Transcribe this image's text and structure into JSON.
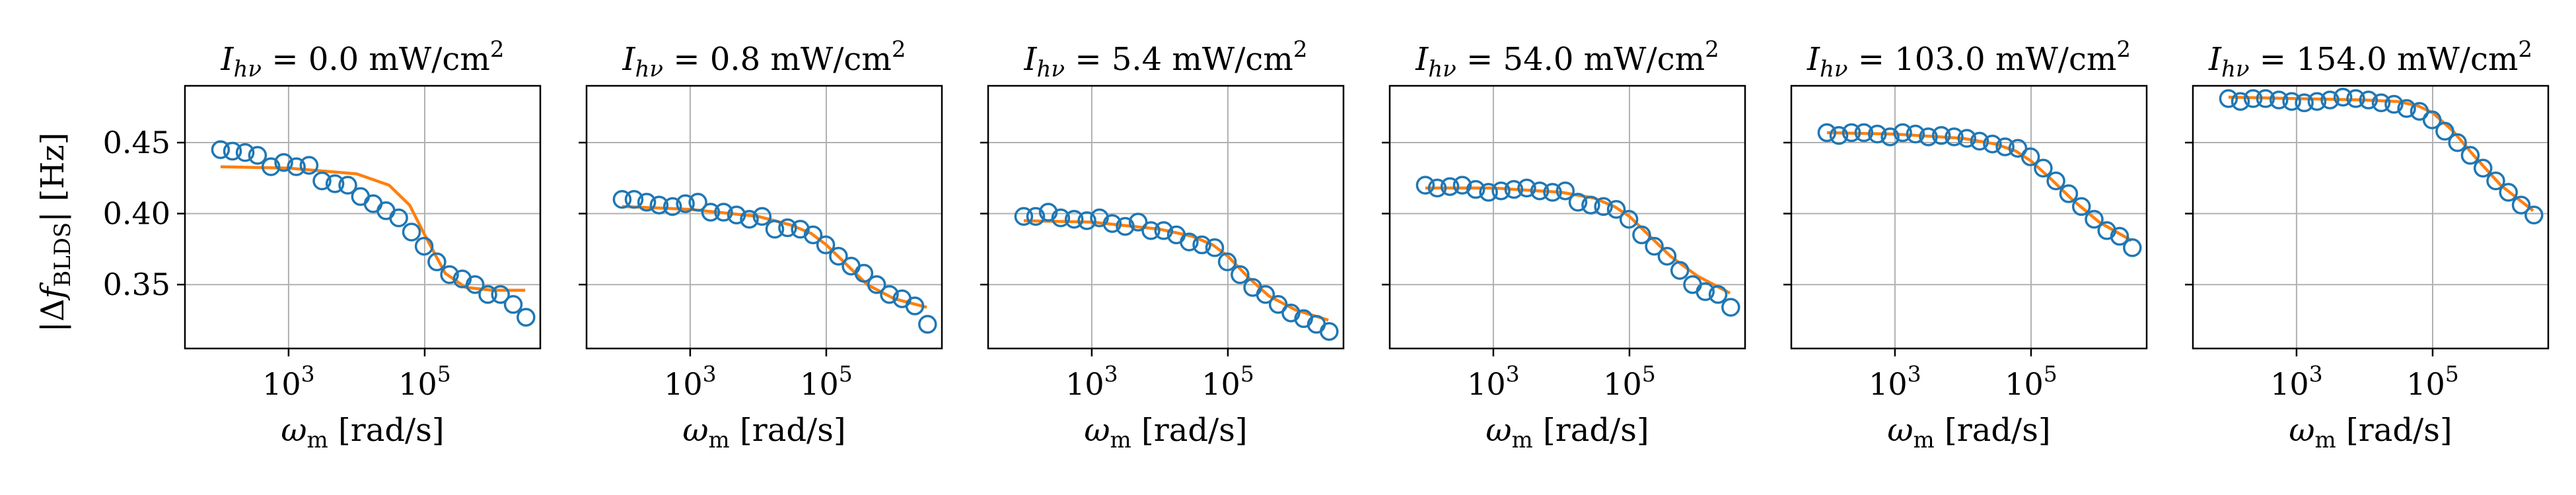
{
  "figure": {
    "ylabel": "|Δf_BLDS| [Hz]",
    "xlabel": "ω_m [rad/s]",
    "colors": {
      "markers": "#1f77b4",
      "fit": "#ff7f0e",
      "grid": "#b0b0b0"
    }
  },
  "chart_data": [
    {
      "type": "scatter",
      "title": "I_hν = 0.0 mW/cm²",
      "xscale": "log",
      "xlim": [
        30,
        5000000
      ],
      "ylim": [
        0.305,
        0.49
      ],
      "xticks": [
        1000,
        100000
      ],
      "xticklabels": [
        "10^3",
        "10^5"
      ],
      "yticks": [
        0.35,
        0.4,
        0.45
      ],
      "yticklabels": [
        "0.35",
        "0.40",
        "0.45"
      ],
      "grid": true,
      "series": [
        {
          "kind": "markers",
          "x": [
            100,
            150,
            230,
            350,
            550,
            850,
            1300,
            2000,
            3100,
            4800,
            7400,
            11400,
            17500,
            27000,
            41500,
            64000,
            98000,
            151000,
            232000,
            357000,
            550000,
            846000,
            1300000,
            2000000,
            3080000
          ],
          "y": [
            0.445,
            0.444,
            0.443,
            0.441,
            0.433,
            0.436,
            0.433,
            0.434,
            0.423,
            0.421,
            0.42,
            0.412,
            0.407,
            0.402,
            0.397,
            0.387,
            0.377,
            0.366,
            0.357,
            0.354,
            0.35,
            0.343,
            0.343,
            0.336,
            0.327
          ]
        },
        {
          "kind": "fit",
          "x": [
            100,
            1000,
            10000,
            30000,
            60000,
            100000,
            200000,
            400000,
            1000000,
            3000000
          ],
          "y": [
            0.433,
            0.432,
            0.428,
            0.42,
            0.406,
            0.385,
            0.358,
            0.348,
            0.346,
            0.346
          ]
        }
      ]
    },
    {
      "type": "scatter",
      "title": "I_hν = 0.8 mW/cm²",
      "xscale": "log",
      "xlim": [
        30,
        5000000
      ],
      "ylim": [
        0.305,
        0.49
      ],
      "xticks": [
        1000,
        100000
      ],
      "xticklabels": [
        "10^3",
        "10^5"
      ],
      "yticks": [
        0.35,
        0.4,
        0.45
      ],
      "yticklabels": [
        "",
        "",
        ""
      ],
      "grid": true,
      "series": [
        {
          "kind": "markers",
          "x": [
            100,
            150,
            230,
            350,
            550,
            850,
            1300,
            2000,
            3100,
            4800,
            7400,
            11400,
            17500,
            27000,
            41500,
            64000,
            98000,
            151000,
            232000,
            357000,
            550000,
            846000,
            1300000,
            2000000,
            3080000
          ],
          "y": [
            0.41,
            0.41,
            0.408,
            0.406,
            0.405,
            0.407,
            0.408,
            0.401,
            0.401,
            0.399,
            0.396,
            0.398,
            0.389,
            0.39,
            0.389,
            0.385,
            0.378,
            0.37,
            0.363,
            0.358,
            0.35,
            0.343,
            0.34,
            0.335,
            0.322
          ]
        },
        {
          "kind": "fit",
          "x": [
            100,
            1000,
            10000,
            30000,
            60000,
            100000,
            200000,
            400000,
            1000000,
            3000000
          ],
          "y": [
            0.405,
            0.403,
            0.398,
            0.392,
            0.386,
            0.378,
            0.364,
            0.35,
            0.34,
            0.334
          ]
        }
      ]
    },
    {
      "type": "scatter",
      "title": "I_hν = 5.4 mW/cm²",
      "xscale": "log",
      "xlim": [
        30,
        5000000
      ],
      "ylim": [
        0.305,
        0.49
      ],
      "xticks": [
        1000,
        100000
      ],
      "xticklabels": [
        "10^3",
        "10^5"
      ],
      "yticks": [
        0.35,
        0.4,
        0.45
      ],
      "yticklabels": [
        "",
        "",
        ""
      ],
      "grid": true,
      "series": [
        {
          "kind": "markers",
          "x": [
            100,
            150,
            230,
            350,
            550,
            850,
            1300,
            2000,
            3100,
            4800,
            7400,
            11400,
            17500,
            27000,
            41500,
            64000,
            98000,
            151000,
            232000,
            357000,
            550000,
            846000,
            1300000,
            2000000,
            3080000
          ],
          "y": [
            0.398,
            0.398,
            0.401,
            0.397,
            0.396,
            0.395,
            0.397,
            0.393,
            0.391,
            0.394,
            0.388,
            0.388,
            0.385,
            0.38,
            0.378,
            0.376,
            0.366,
            0.357,
            0.348,
            0.343,
            0.336,
            0.33,
            0.326,
            0.322,
            0.317
          ]
        },
        {
          "kind": "fit",
          "x": [
            100,
            1000,
            10000,
            30000,
            60000,
            100000,
            200000,
            400000,
            1000000,
            3000000
          ],
          "y": [
            0.395,
            0.394,
            0.389,
            0.384,
            0.378,
            0.37,
            0.355,
            0.342,
            0.332,
            0.325
          ]
        }
      ]
    },
    {
      "type": "scatter",
      "title": "I_hν = 54.0 mW/cm²",
      "xscale": "log",
      "xlim": [
        30,
        5000000
      ],
      "ylim": [
        0.305,
        0.49
      ],
      "xticks": [
        1000,
        100000
      ],
      "xticklabels": [
        "10^3",
        "10^5"
      ],
      "yticks": [
        0.35,
        0.4,
        0.45
      ],
      "yticklabels": [
        "",
        "",
        ""
      ],
      "grid": true,
      "series": [
        {
          "kind": "markers",
          "x": [
            100,
            150,
            230,
            350,
            550,
            850,
            1300,
            2000,
            3100,
            4800,
            7400,
            11400,
            17500,
            27000,
            41500,
            64000,
            98000,
            151000,
            232000,
            357000,
            550000,
            846000,
            1300000,
            2000000,
            3080000
          ],
          "y": [
            0.42,
            0.418,
            0.419,
            0.42,
            0.417,
            0.415,
            0.416,
            0.417,
            0.418,
            0.416,
            0.415,
            0.416,
            0.408,
            0.406,
            0.405,
            0.403,
            0.396,
            0.385,
            0.377,
            0.37,
            0.36,
            0.35,
            0.345,
            0.343,
            0.334
          ]
        },
        {
          "kind": "fit",
          "x": [
            100,
            1000,
            10000,
            30000,
            60000,
            100000,
            200000,
            400000,
            1000000,
            3000000
          ],
          "y": [
            0.418,
            0.418,
            0.415,
            0.411,
            0.405,
            0.398,
            0.384,
            0.37,
            0.356,
            0.344
          ]
        }
      ]
    },
    {
      "type": "scatter",
      "title": "I_hν = 103.0 mW/cm²",
      "xscale": "log",
      "xlim": [
        30,
        5000000
      ],
      "ylim": [
        0.305,
        0.49
      ],
      "xticks": [
        1000,
        100000
      ],
      "xticklabels": [
        "10^3",
        "10^5"
      ],
      "yticks": [
        0.35,
        0.4,
        0.45
      ],
      "yticklabels": [
        "",
        "",
        ""
      ],
      "grid": true,
      "series": [
        {
          "kind": "markers",
          "x": [
            100,
            150,
            230,
            350,
            550,
            850,
            1300,
            2000,
            3100,
            4800,
            7400,
            11400,
            17500,
            27000,
            41500,
            64000,
            98000,
            151000,
            232000,
            357000,
            550000,
            846000,
            1300000,
            2000000,
            3080000
          ],
          "y": [
            0.457,
            0.455,
            0.457,
            0.457,
            0.456,
            0.454,
            0.457,
            0.456,
            0.454,
            0.455,
            0.454,
            0.453,
            0.451,
            0.449,
            0.447,
            0.446,
            0.44,
            0.432,
            0.423,
            0.414,
            0.405,
            0.396,
            0.388,
            0.384,
            0.376
          ]
        },
        {
          "kind": "fit",
          "x": [
            100,
            1000,
            10000,
            30000,
            60000,
            100000,
            200000,
            400000,
            1000000,
            3000000
          ],
          "y": [
            0.457,
            0.456,
            0.453,
            0.449,
            0.444,
            0.437,
            0.424,
            0.41,
            0.394,
            0.381
          ]
        }
      ]
    },
    {
      "type": "scatter",
      "title": "I_hν = 154.0 mW/cm²",
      "xscale": "log",
      "xlim": [
        30,
        5000000
      ],
      "ylim": [
        0.305,
        0.49
      ],
      "xticks": [
        1000,
        100000
      ],
      "xticklabels": [
        "10^3",
        "10^5"
      ],
      "yticks": [
        0.35,
        0.4,
        0.45
      ],
      "yticklabels": [
        "",
        "",
        ""
      ],
      "grid": true,
      "series": [
        {
          "kind": "markers",
          "x": [
            100,
            150,
            230,
            350,
            550,
            850,
            1300,
            2000,
            3100,
            4800,
            7400,
            11400,
            17500,
            27000,
            41500,
            64000,
            98000,
            151000,
            232000,
            357000,
            550000,
            846000,
            1300000,
            2000000,
            3080000
          ],
          "y": [
            0.481,
            0.479,
            0.481,
            0.481,
            0.48,
            0.479,
            0.478,
            0.479,
            0.48,
            0.482,
            0.481,
            0.48,
            0.478,
            0.477,
            0.474,
            0.472,
            0.466,
            0.458,
            0.45,
            0.441,
            0.432,
            0.423,
            0.415,
            0.406,
            0.399
          ]
        },
        {
          "kind": "fit",
          "x": [
            100,
            1000,
            10000,
            30000,
            60000,
            100000,
            200000,
            400000,
            1000000,
            3000000
          ],
          "y": [
            0.482,
            0.481,
            0.48,
            0.479,
            0.476,
            0.471,
            0.458,
            0.441,
            0.42,
            0.402
          ]
        }
      ]
    }
  ]
}
